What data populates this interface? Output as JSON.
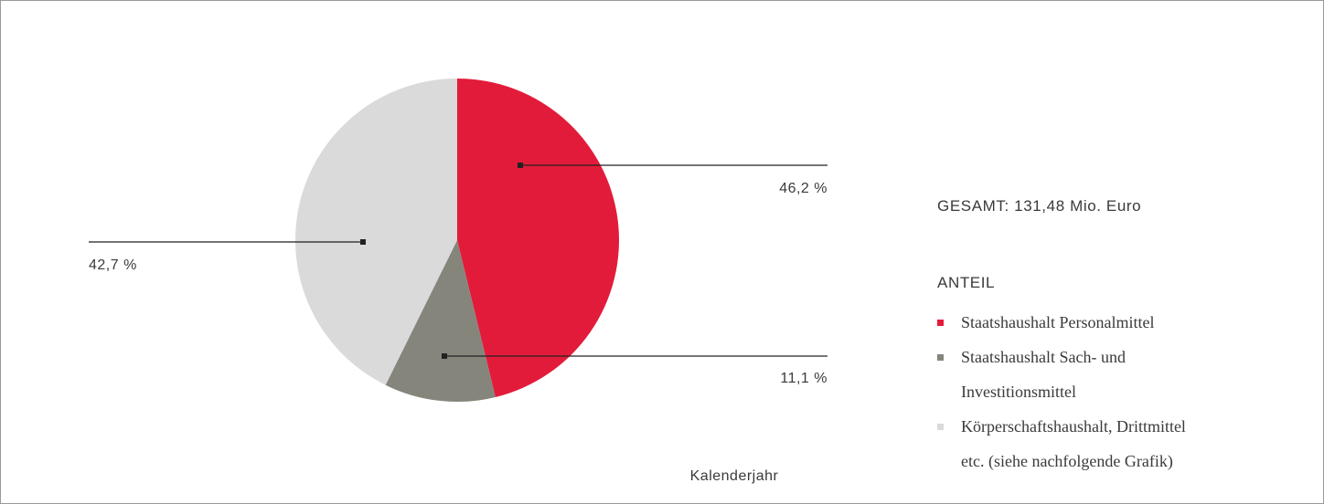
{
  "chart_data": {
    "type": "pie",
    "categories": [
      "Staatshaushalt Personalmittel",
      "Staatshaushalt Sach- und Investitionsmittel",
      "Körperschaftshaushalt, Drittmittel etc. (siehe nachfolgende Grafik)"
    ],
    "values": [
      46.2,
      11.1,
      42.7
    ],
    "value_labels": [
      "46,2 %",
      "11,1 %",
      "42,7 %"
    ],
    "colors": [
      "#e31b3a",
      "#85857b",
      "#d9dad9"
    ],
    "total": "GESAMT: 131,48 Mio. Euro",
    "legend_title": "ANTEIL",
    "note": "Kalenderjahr"
  }
}
